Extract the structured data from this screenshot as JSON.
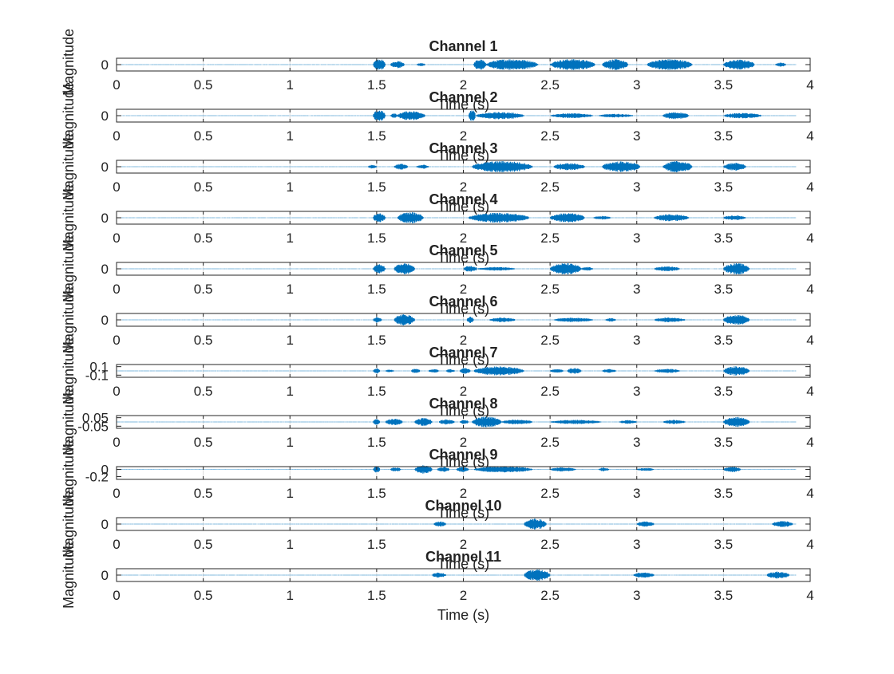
{
  "chart_data": {
    "type": "line",
    "layout": "stacked-subplots",
    "series_color": "#0072BD",
    "x_unit": "s",
    "xlim": [
      0,
      4
    ],
    "x_ticks": [
      0,
      0.5,
      1,
      1.5,
      2,
      2.5,
      3,
      3.5,
      4
    ],
    "x_tick_labels": [
      "0",
      "0.5",
      "1",
      "1.5",
      "2",
      "2.5",
      "3",
      "3.5",
      "4"
    ],
    "signal_end": 3.92,
    "xlabel": "Time (s)",
    "ylabel": "Magnitude",
    "grid": "x-major",
    "subplots": [
      {
        "title": "Channel 1",
        "y_tick_labels": [
          "0"
        ],
        "y_ticks": [
          0
        ],
        "ylim": [
          -0.5,
          0.5
        ],
        "noise_level": 0.03,
        "bursts": [
          [
            1.48,
            1.55,
            0.95
          ],
          [
            1.58,
            1.66,
            0.6
          ],
          [
            1.73,
            1.78,
            0.25
          ],
          [
            2.06,
            2.13,
            0.9
          ],
          [
            2.13,
            2.43,
            0.95
          ],
          [
            2.5,
            2.76,
            0.95
          ],
          [
            2.8,
            2.95,
            0.9
          ],
          [
            3.06,
            3.32,
            0.95
          ],
          [
            3.5,
            3.68,
            0.85
          ],
          [
            3.8,
            3.86,
            0.35
          ]
        ]
      },
      {
        "title": "Channel 2",
        "y_tick_labels": [
          "0"
        ],
        "y_ticks": [
          0
        ],
        "ylim": [
          -0.5,
          0.5
        ],
        "noise_level": 0.03,
        "bursts": [
          [
            1.48,
            1.55,
            0.95
          ],
          [
            1.58,
            1.62,
            0.4
          ],
          [
            1.62,
            1.78,
            0.8
          ],
          [
            2.03,
            2.07,
            0.95
          ],
          [
            2.07,
            2.35,
            0.6
          ],
          [
            2.5,
            2.75,
            0.4
          ],
          [
            2.78,
            2.98,
            0.3
          ],
          [
            3.15,
            3.3,
            0.6
          ],
          [
            3.5,
            3.72,
            0.45
          ]
        ]
      },
      {
        "title": "Channel 3",
        "y_tick_labels": [
          "0"
        ],
        "y_ticks": [
          0
        ],
        "ylim": [
          -0.5,
          0.5
        ],
        "noise_level": 0.03,
        "bursts": [
          [
            1.45,
            1.5,
            0.3
          ],
          [
            1.6,
            1.68,
            0.5
          ],
          [
            1.73,
            1.8,
            0.35
          ],
          [
            2.05,
            2.4,
            0.95
          ],
          [
            2.52,
            2.7,
            0.6
          ],
          [
            2.8,
            3.02,
            0.9
          ],
          [
            3.15,
            3.32,
            0.95
          ],
          [
            3.5,
            3.63,
            0.65
          ]
        ]
      },
      {
        "title": "Channel 4",
        "y_tick_labels": [
          "0"
        ],
        "y_ticks": [
          0
        ],
        "ylim": [
          -0.5,
          0.5
        ],
        "noise_level": 0.03,
        "bursts": [
          [
            1.48,
            1.55,
            0.8
          ],
          [
            1.62,
            1.77,
            0.95
          ],
          [
            2.03,
            2.38,
            0.85
          ],
          [
            2.5,
            2.7,
            0.8
          ],
          [
            2.75,
            2.85,
            0.3
          ],
          [
            3.1,
            3.3,
            0.6
          ],
          [
            3.5,
            3.63,
            0.4
          ]
        ]
      },
      {
        "title": "Channel 5",
        "y_tick_labels": [
          "0"
        ],
        "y_ticks": [
          0
        ],
        "ylim": [
          -0.5,
          0.5
        ],
        "noise_level": 0.03,
        "bursts": [
          [
            1.48,
            1.55,
            0.75
          ],
          [
            1.6,
            1.72,
            0.95
          ],
          [
            2.0,
            2.08,
            0.5
          ],
          [
            2.08,
            2.3,
            0.3
          ],
          [
            2.5,
            2.68,
            0.95
          ],
          [
            2.68,
            2.75,
            0.3
          ],
          [
            3.1,
            3.25,
            0.4
          ],
          [
            3.5,
            3.65,
            0.95
          ]
        ]
      },
      {
        "title": "Channel 6",
        "y_tick_labels": [
          "0"
        ],
        "y_ticks": [
          0
        ],
        "ylim": [
          -0.5,
          0.5
        ],
        "noise_level": 0.03,
        "bursts": [
          [
            1.48,
            1.53,
            0.5
          ],
          [
            1.6,
            1.72,
            0.95
          ],
          [
            2.02,
            2.06,
            0.6
          ],
          [
            2.15,
            2.3,
            0.4
          ],
          [
            2.52,
            2.75,
            0.35
          ],
          [
            2.82,
            2.88,
            0.3
          ],
          [
            3.1,
            3.28,
            0.4
          ],
          [
            3.5,
            3.65,
            0.85
          ]
        ]
      },
      {
        "title": "Channel 7",
        "y_tick_labels": [
          "0.1",
          "-0.1"
        ],
        "y_ticks": [
          0.1,
          -0.1
        ],
        "ylim": [
          -0.15,
          0.15
        ],
        "noise_level": 0.03,
        "bursts": [
          [
            1.48,
            1.52,
            0.45
          ],
          [
            1.55,
            1.6,
            0.25
          ],
          [
            1.7,
            1.75,
            0.4
          ],
          [
            1.8,
            1.86,
            0.3
          ],
          [
            1.9,
            1.95,
            0.3
          ],
          [
            1.98,
            2.04,
            0.5
          ],
          [
            2.06,
            2.35,
            0.75
          ],
          [
            2.5,
            2.58,
            0.3
          ],
          [
            2.6,
            2.68,
            0.5
          ],
          [
            2.8,
            2.88,
            0.3
          ],
          [
            3.1,
            3.25,
            0.35
          ],
          [
            3.5,
            3.65,
            0.8
          ]
        ]
      },
      {
        "title": "Channel 8",
        "y_tick_labels": [
          "0.05",
          "-0.05"
        ],
        "y_ticks": [
          0.05,
          -0.05
        ],
        "ylim": [
          -0.075,
          0.075
        ],
        "noise_level": 0.03,
        "bursts": [
          [
            1.48,
            1.52,
            0.5
          ],
          [
            1.55,
            1.65,
            0.55
          ],
          [
            1.72,
            1.82,
            0.7
          ],
          [
            1.86,
            1.95,
            0.45
          ],
          [
            1.98,
            2.03,
            0.35
          ],
          [
            2.05,
            2.22,
            0.9
          ],
          [
            2.22,
            2.4,
            0.4
          ],
          [
            2.5,
            2.8,
            0.35
          ],
          [
            2.9,
            3.0,
            0.3
          ],
          [
            3.15,
            3.28,
            0.35
          ],
          [
            3.5,
            3.65,
            0.85
          ]
        ]
      },
      {
        "title": "Channel 9",
        "y_tick_labels": [
          "0",
          "-0.2"
        ],
        "y_ticks": [
          0,
          -0.2
        ],
        "ylim": [
          -0.28,
          0.08
        ],
        "noise_level": 0.03,
        "bursts": [
          [
            1.48,
            1.52,
            0.55
          ],
          [
            1.58,
            1.64,
            0.35
          ],
          [
            1.72,
            1.82,
            0.7
          ],
          [
            1.85,
            1.92,
            0.4
          ],
          [
            1.96,
            2.03,
            0.45
          ],
          [
            2.06,
            2.4,
            0.5
          ],
          [
            2.5,
            2.65,
            0.35
          ],
          [
            2.78,
            2.84,
            0.3
          ],
          [
            3.0,
            3.1,
            0.25
          ],
          [
            3.5,
            3.6,
            0.45
          ]
        ]
      },
      {
        "title": "Channel 10",
        "y_tick_labels": [
          "0"
        ],
        "y_ticks": [
          0
        ],
        "ylim": [
          -0.5,
          0.5
        ],
        "noise_level": 0.03,
        "bursts": [
          [
            1.83,
            1.9,
            0.45
          ],
          [
            2.35,
            2.48,
            0.9
          ],
          [
            3.0,
            3.1,
            0.45
          ],
          [
            3.78,
            3.9,
            0.5
          ]
        ]
      },
      {
        "title": "Channel 11",
        "y_tick_labels": [
          "0"
        ],
        "y_ticks": [
          0
        ],
        "ylim": [
          -0.5,
          0.5
        ],
        "noise_level": 0.03,
        "bursts": [
          [
            1.82,
            1.9,
            0.45
          ],
          [
            2.35,
            2.5,
            0.95
          ],
          [
            2.98,
            3.1,
            0.45
          ],
          [
            3.75,
            3.88,
            0.6
          ]
        ]
      }
    ]
  }
}
